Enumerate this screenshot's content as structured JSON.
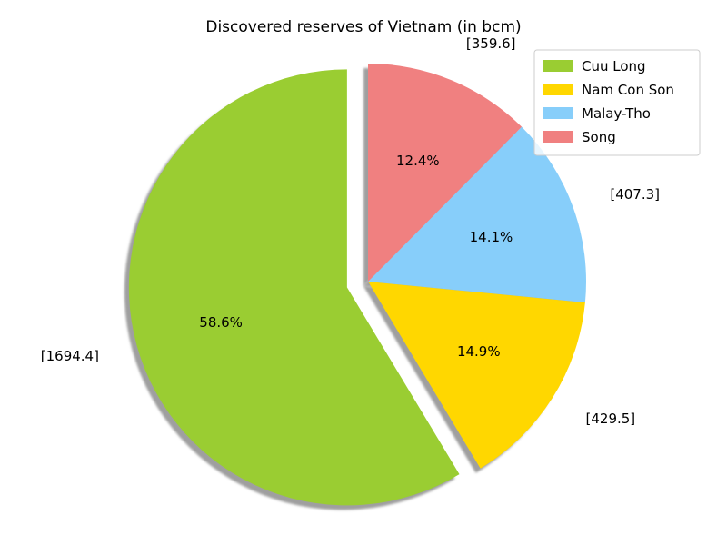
{
  "chart_data": {
    "type": "pie",
    "title": "Discovered reserves of Vietnam (in bcm)",
    "legend_position": "top-right",
    "startangle_deg": 90,
    "counterclockwise": true,
    "shadow": true,
    "slices": [
      {
        "label": "Cuu Long",
        "value": 1694.4,
        "value_label": "[1694.4]",
        "percent": "58.6%",
        "color": "#9acd32",
        "explode": 0.1
      },
      {
        "label": "Nam Con Son",
        "value": 429.5,
        "value_label": "[429.5]",
        "percent": "14.9%",
        "color": "#ffd700",
        "explode": 0
      },
      {
        "label": "Malay-Tho",
        "value": 407.3,
        "value_label": "[407.3]",
        "percent": "14.1%",
        "color": "#87cefa",
        "explode": 0
      },
      {
        "label": "Song",
        "value": 359.6,
        "value_label": "[359.6]",
        "percent": "12.4%",
        "color": "#f08080",
        "explode": 0
      }
    ]
  }
}
